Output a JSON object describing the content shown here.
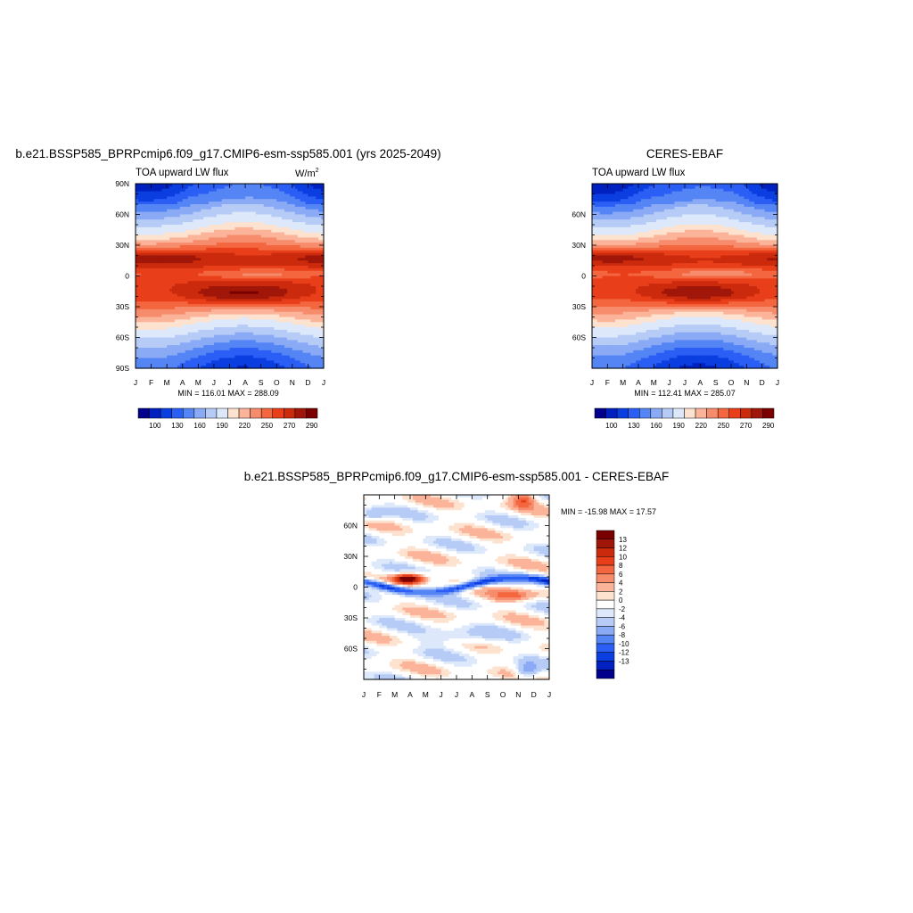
{
  "colors": {
    "abs_scale": [
      "#00008c",
      "#0020c0",
      "#0a3ee0",
      "#2a5ef5",
      "#5585f5",
      "#8aaaf5",
      "#b6ccf7",
      "#dde9fb",
      "#fde2cf",
      "#fbb49a",
      "#f78c6c",
      "#f3663f",
      "#e83f1a",
      "#cc2a0c",
      "#a01608",
      "#7a0000"
    ],
    "diff_scale": [
      "#00008c",
      "#0020c0",
      "#0a3ee0",
      "#2a5ef5",
      "#5585f5",
      "#8aaaf5",
      "#b6ccf7",
      "#dde9fb",
      "#ffffff",
      "#fde2cf",
      "#fbb49a",
      "#f78c6c",
      "#f3663f",
      "#e83f1a",
      "#cc2a0c",
      "#a01608",
      "#7a0000"
    ]
  },
  "chart_data": [
    {
      "type": "heatmap",
      "title": "b.e21.BSSP585_BPRPcmip6.f09_g17.CMIP6-esm-ssp585.001 (yrs 2025-2049)",
      "subtitle": "TOA upward LW flux",
      "units_base": "W/m",
      "units_exp": "2",
      "x_ticks": [
        "J",
        "F",
        "M",
        "A",
        "M",
        "J",
        "J",
        "A",
        "S",
        "O",
        "N",
        "D",
        "J"
      ],
      "y_ticks": [
        "90N",
        "60N",
        "30N",
        "0",
        "30S",
        "60S",
        "90S"
      ],
      "stats": "MIN = 116.01 MAX = 288.09",
      "min": 116.01,
      "max": 288.09,
      "colorbar_labels": [
        "100",
        "130",
        "160",
        "190",
        "220",
        "250",
        "270",
        "290"
      ]
    },
    {
      "type": "heatmap",
      "title": "CERES-EBAF",
      "subtitle": "TOA upward LW flux",
      "x_ticks": [
        "J",
        "F",
        "M",
        "A",
        "M",
        "J",
        "J",
        "A",
        "S",
        "O",
        "N",
        "D",
        "J"
      ],
      "y_ticks": [
        "60N",
        "30N",
        "0",
        "30S",
        "60S"
      ],
      "stats": "MIN = 112.41 MAX = 285.07",
      "min": 112.41,
      "max": 285.07,
      "colorbar_labels": [
        "100",
        "130",
        "160",
        "190",
        "220",
        "250",
        "270",
        "290"
      ]
    },
    {
      "type": "heatmap",
      "title": "b.e21.BSSP585_BPRPcmip6.f09_g17.CMIP6-esm-ssp585.001 - CERES-EBAF",
      "x_ticks": [
        "J",
        "F",
        "M",
        "A",
        "M",
        "J",
        "J",
        "A",
        "S",
        "O",
        "N",
        "D",
        "J"
      ],
      "y_ticks": [
        "60N",
        "30N",
        "0",
        "30S",
        "60S"
      ],
      "stats": "MIN = -15.98 MAX =  17.57",
      "min": -15.98,
      "max": 17.57,
      "colorbar_labels": [
        "13",
        "12",
        "10",
        "8",
        "6",
        "4",
        "2",
        "0",
        "-2",
        "-4",
        "-6",
        "-8",
        "-10",
        "-12",
        "-13"
      ]
    }
  ]
}
